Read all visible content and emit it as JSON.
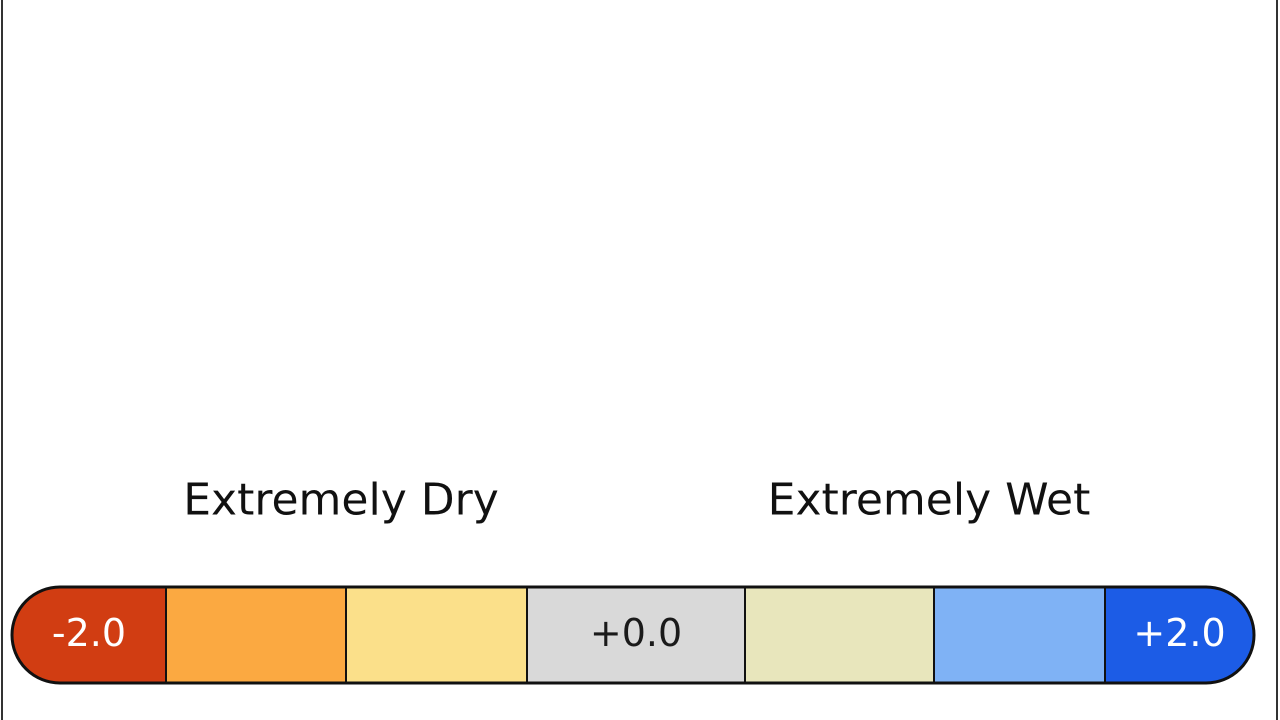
{
  "headings": {
    "left": "Extremely Dry",
    "right": "Extremely Wet"
  },
  "scale": {
    "segments": [
      {
        "color": "#d13d12",
        "label": "-2.0",
        "text_color": "#ffffff"
      },
      {
        "color": "#fba941"
      },
      {
        "color": "#fbe08a"
      },
      {
        "color": "#d9d9d9",
        "label": "+0.0",
        "text_color": "#1a1a1a"
      },
      {
        "color": "#e8e6bc"
      },
      {
        "color": "#7fb2f5"
      },
      {
        "color": "#1c5ce6",
        "label": "+2.0",
        "text_color": "#ffffff"
      }
    ]
  }
}
